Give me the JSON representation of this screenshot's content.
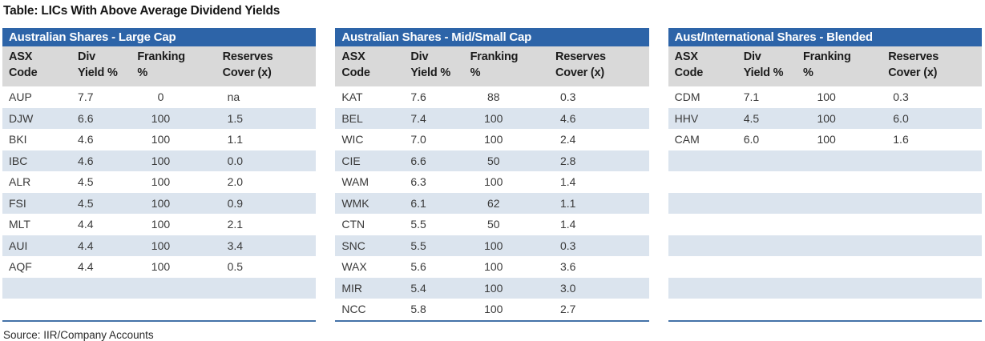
{
  "page": {
    "title": "Table: LICs With Above Average Dividend Yields",
    "source": "Source: IIR/Company Accounts"
  },
  "colors": {
    "section_header_bg": "#2d64a8",
    "section_header_text": "#ffffff",
    "column_header_bg": "#d9d9d9",
    "row_stripe": "#dbe4ee",
    "table_bottom_border": "#4472a8"
  },
  "columns": [
    {
      "line1": "ASX",
      "line2": "Code"
    },
    {
      "line1": "Div",
      "line2": "Yield %"
    },
    {
      "line1": "Franking",
      "line2": "%"
    },
    {
      "line1": "Reserves",
      "line2": "Cover (x)"
    }
  ],
  "rows_per_table": 11,
  "tables": [
    {
      "title": "Australian Shares - Large Cap",
      "rows": [
        {
          "code": "AUP",
          "div_yield": "7.7",
          "franking": "0",
          "reserves": "na"
        },
        {
          "code": "DJW",
          "div_yield": "6.6",
          "franking": "100",
          "reserves": "1.5"
        },
        {
          "code": "BKI",
          "div_yield": "4.6",
          "franking": "100",
          "reserves": "1.1"
        },
        {
          "code": "IBC",
          "div_yield": "4.6",
          "franking": "100",
          "reserves": "0.0"
        },
        {
          "code": "ALR",
          "div_yield": "4.5",
          "franking": "100",
          "reserves": "2.0"
        },
        {
          "code": "FSI",
          "div_yield": "4.5",
          "franking": "100",
          "reserves": "0.9"
        },
        {
          "code": "MLT",
          "div_yield": "4.4",
          "franking": "100",
          "reserves": "2.1"
        },
        {
          "code": "AUI",
          "div_yield": "4.4",
          "franking": "100",
          "reserves": "3.4"
        },
        {
          "code": "AQF",
          "div_yield": "4.4",
          "franking": "100",
          "reserves": "0.5"
        }
      ]
    },
    {
      "title": "Australian Shares - Mid/Small Cap",
      "rows": [
        {
          "code": "KAT",
          "div_yield": "7.6",
          "franking": "88",
          "reserves": "0.3"
        },
        {
          "code": "BEL",
          "div_yield": "7.4",
          "franking": "100",
          "reserves": "4.6"
        },
        {
          "code": "WIC",
          "div_yield": "7.0",
          "franking": "100",
          "reserves": "2.4"
        },
        {
          "code": "CIE",
          "div_yield": "6.6",
          "franking": "50",
          "reserves": "2.8"
        },
        {
          "code": "WAM",
          "div_yield": "6.3",
          "franking": "100",
          "reserves": "1.4"
        },
        {
          "code": "WMK",
          "div_yield": "6.1",
          "franking": "62",
          "reserves": "1.1"
        },
        {
          "code": "CTN",
          "div_yield": "5.5",
          "franking": "50",
          "reserves": "1.4"
        },
        {
          "code": "SNC",
          "div_yield": "5.5",
          "franking": "100",
          "reserves": "0.3"
        },
        {
          "code": "WAX",
          "div_yield": "5.6",
          "franking": "100",
          "reserves": "3.6"
        },
        {
          "code": "MIR",
          "div_yield": "5.4",
          "franking": "100",
          "reserves": "3.0"
        },
        {
          "code": "NCC",
          "div_yield": "5.8",
          "franking": "100",
          "reserves": "2.7"
        }
      ]
    },
    {
      "title": "Aust/International Shares - Blended",
      "rows": [
        {
          "code": "CDM",
          "div_yield": "7.1",
          "franking": "100",
          "reserves": "0.3"
        },
        {
          "code": "HHV",
          "div_yield": "4.5",
          "franking": "100",
          "reserves": "6.0"
        },
        {
          "code": "CAM",
          "div_yield": "6.0",
          "franking": "100",
          "reserves": "1.6"
        }
      ]
    }
  ]
}
